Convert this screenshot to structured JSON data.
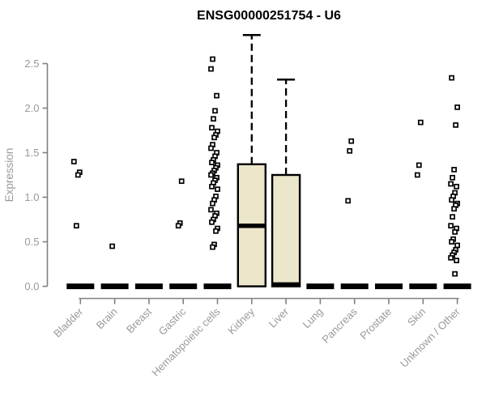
{
  "page": {
    "title": "ENSG00000251754 - U6"
  },
  "chart_data": {
    "type": "boxplot",
    "title": "ENSG00000251754 - U6",
    "xlabel": "",
    "ylabel": "Expression",
    "ylim": [
      0,
      2.9
    ],
    "yticks": [
      0.0,
      0.5,
      1.0,
      1.5,
      2.0,
      2.5
    ],
    "grid": false,
    "legend": false,
    "colors": {
      "box_fill": "#ece7cb",
      "box_border": "#000000",
      "median": "#000000",
      "whisker": "#000000",
      "outlier_stroke": "#000000",
      "outlier_fill": "#ffffff",
      "axis": "#808080",
      "tick_label": "#999999",
      "title": "#000000"
    },
    "categories": [
      "Bladder",
      "Brain",
      "Breast",
      "Gastric",
      "Hematopoietic cells",
      "Kidney",
      "Liver",
      "Lung",
      "Pancreas",
      "Prostate",
      "Skin",
      "Unknown / Other"
    ],
    "boxes": [
      {
        "category": "Bladder",
        "q1": 0,
        "median": 0,
        "q3": 0,
        "whisker_low": 0,
        "whisker_high": 0,
        "outliers": [
          1.4,
          1.28,
          1.25,
          0.68
        ]
      },
      {
        "category": "Brain",
        "q1": 0,
        "median": 0,
        "q3": 0,
        "whisker_low": 0,
        "whisker_high": 0,
        "outliers": [
          0.45
        ]
      },
      {
        "category": "Breast",
        "q1": 0,
        "median": 0,
        "q3": 0,
        "whisker_low": 0,
        "whisker_high": 0,
        "outliers": []
      },
      {
        "category": "Gastric",
        "q1": 0,
        "median": 0,
        "q3": 0,
        "whisker_low": 0,
        "whisker_high": 0,
        "outliers": [
          1.18,
          0.71,
          0.68
        ]
      },
      {
        "category": "Hematopoietic cells",
        "q1": 0,
        "median": 0,
        "q3": 0,
        "whisker_low": 0,
        "whisker_high": 0,
        "outliers": [
          2.55,
          2.44,
          2.14,
          1.97,
          1.88,
          1.78,
          1.74,
          1.7,
          1.67,
          1.59,
          1.55,
          1.5,
          1.46,
          1.42,
          1.39,
          1.36,
          1.33,
          1.3,
          1.27,
          1.25,
          1.22,
          1.19,
          1.16,
          1.12,
          1.09,
          1.01,
          0.97,
          0.93,
          0.86,
          0.82,
          0.79,
          0.75,
          0.72,
          0.65,
          0.62,
          0.47,
          0.44
        ]
      },
      {
        "category": "Kidney",
        "q1": 0,
        "median": 0.68,
        "q3": 1.37,
        "whisker_low": 0,
        "whisker_high": 2.82,
        "outliers": []
      },
      {
        "category": "Liver",
        "q1": 0,
        "median": 0.02,
        "q3": 1.25,
        "whisker_low": 0,
        "whisker_high": 2.32,
        "outliers": []
      },
      {
        "category": "Lung",
        "q1": 0,
        "median": 0,
        "q3": 0,
        "whisker_low": 0,
        "whisker_high": 0,
        "outliers": []
      },
      {
        "category": "Pancreas",
        "q1": 0,
        "median": 0,
        "q3": 0,
        "whisker_low": 0,
        "whisker_high": 0,
        "outliers": [
          1.63,
          1.52,
          0.96
        ]
      },
      {
        "category": "Prostate",
        "q1": 0,
        "median": 0,
        "q3": 0,
        "whisker_low": 0,
        "whisker_high": 0,
        "outliers": []
      },
      {
        "category": "Skin",
        "q1": 0,
        "median": 0,
        "q3": 0,
        "whisker_low": 0,
        "whisker_high": 0,
        "outliers": [
          1.84,
          1.36,
          1.25
        ]
      },
      {
        "category": "Unknown / Other",
        "q1": 0,
        "median": 0,
        "q3": 0,
        "whisker_low": 0,
        "whisker_high": 0,
        "outliers": [
          2.34,
          2.01,
          1.81,
          1.31,
          1.22,
          1.15,
          1.12,
          1.05,
          1.01,
          0.97,
          0.93,
          0.91,
          0.87,
          0.78,
          0.68,
          0.65,
          0.61,
          0.53,
          0.5,
          0.46,
          0.41,
          0.38,
          0.35,
          0.32,
          0.29,
          0.14
        ]
      }
    ]
  }
}
